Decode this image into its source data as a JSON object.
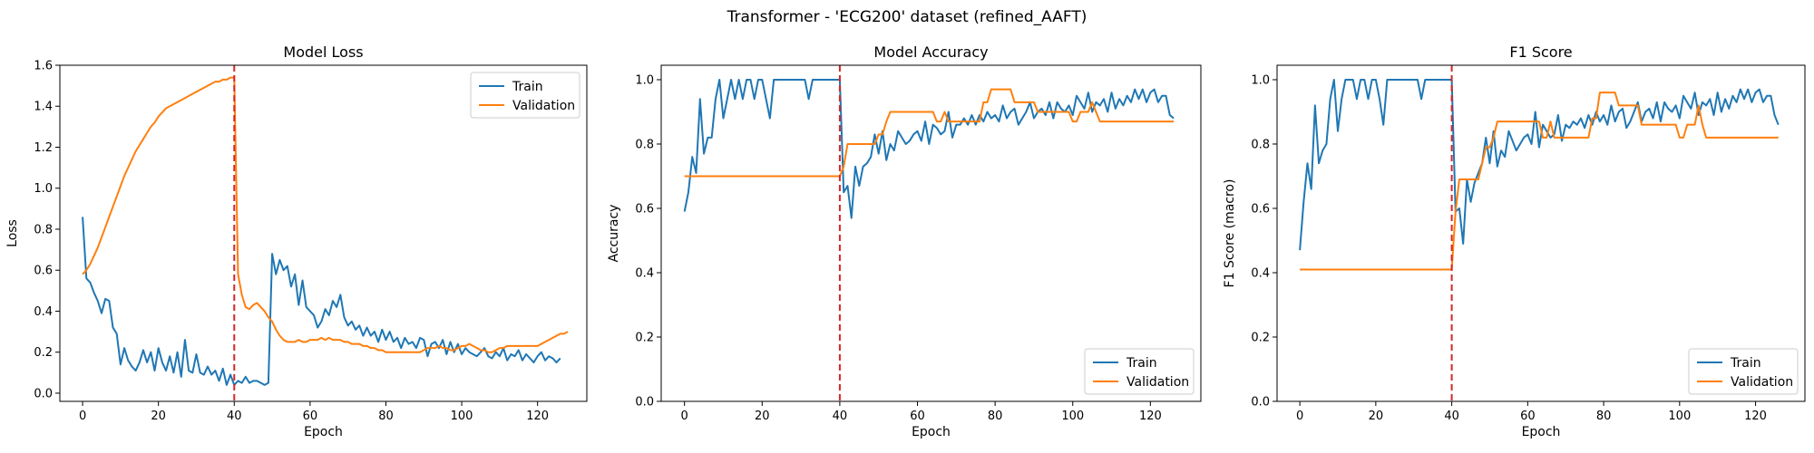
{
  "figure_title": "Transformer - 'ECG200' dataset (refined_AAFT)",
  "colors": {
    "train": "#1f77b4",
    "validation": "#ff7f0e",
    "marker": "#d62728"
  },
  "chart_data": [
    {
      "type": "line",
      "title": "Model Loss",
      "xlabel": "Epoch",
      "ylabel": "Loss",
      "xlim": [
        -6,
        133
      ],
      "ylim": [
        -0.04,
        1.6
      ],
      "xticks": [
        0,
        20,
        40,
        60,
        80,
        100,
        120
      ],
      "yticks": [
        0.0,
        0.2,
        0.4,
        0.6,
        0.8,
        1.0,
        1.2,
        1.4,
        1.6
      ],
      "ytick_labels": [
        "0.0",
        "0.2",
        "0.4",
        "0.6",
        "0.8",
        "1.0",
        "1.2",
        "1.4",
        "1.6"
      ],
      "legend_position": "top-right",
      "vline_x": 40,
      "grid": false,
      "series": [
        {
          "name": "Train",
          "values": [
            0.86,
            0.56,
            0.54,
            0.49,
            0.45,
            0.39,
            0.46,
            0.45,
            0.32,
            0.29,
            0.14,
            0.22,
            0.16,
            0.13,
            0.11,
            0.15,
            0.21,
            0.15,
            0.2,
            0.11,
            0.22,
            0.15,
            0.11,
            0.18,
            0.1,
            0.2,
            0.08,
            0.26,
            0.11,
            0.1,
            0.19,
            0.1,
            0.09,
            0.13,
            0.09,
            0.11,
            0.06,
            0.12,
            0.04,
            0.09,
            0.04,
            0.06,
            0.05,
            0.08,
            0.05,
            0.06,
            0.06,
            0.05,
            0.04,
            0.05,
            0.68,
            0.58,
            0.65,
            0.6,
            0.62,
            0.52,
            0.58,
            0.43,
            0.55,
            0.42,
            0.4,
            0.38,
            0.32,
            0.35,
            0.41,
            0.38,
            0.45,
            0.42,
            0.48,
            0.37,
            0.33,
            0.35,
            0.31,
            0.33,
            0.28,
            0.32,
            0.28,
            0.3,
            0.25,
            0.31,
            0.26,
            0.3,
            0.25,
            0.27,
            0.22,
            0.27,
            0.24,
            0.25,
            0.22,
            0.27,
            0.26,
            0.18,
            0.24,
            0.25,
            0.22,
            0.26,
            0.19,
            0.25,
            0.2,
            0.24,
            0.19,
            0.22,
            0.2,
            0.19,
            0.18,
            0.2,
            0.22,
            0.18,
            0.17,
            0.2,
            0.18,
            0.22,
            0.16,
            0.19,
            0.18,
            0.21,
            0.16,
            0.19,
            0.17,
            0.15,
            0.18,
            0.2,
            0.16,
            0.18,
            0.17,
            0.15,
            0.17
          ]
        },
        {
          "name": "Validation",
          "values": [
            0.58,
            0.6,
            0.63,
            0.67,
            0.71,
            0.76,
            0.81,
            0.86,
            0.91,
            0.96,
            1.01,
            1.06,
            1.1,
            1.14,
            1.18,
            1.21,
            1.24,
            1.27,
            1.3,
            1.32,
            1.35,
            1.37,
            1.39,
            1.4,
            1.41,
            1.42,
            1.43,
            1.44,
            1.45,
            1.46,
            1.47,
            1.48,
            1.49,
            1.5,
            1.51,
            1.52,
            1.52,
            1.53,
            1.53,
            1.54,
            1.54,
            0.58,
            0.48,
            0.42,
            0.41,
            0.43,
            0.44,
            0.42,
            0.4,
            0.37,
            0.35,
            0.31,
            0.28,
            0.26,
            0.25,
            0.25,
            0.25,
            0.26,
            0.25,
            0.25,
            0.26,
            0.26,
            0.26,
            0.27,
            0.26,
            0.27,
            0.26,
            0.26,
            0.26,
            0.25,
            0.25,
            0.24,
            0.24,
            0.24,
            0.23,
            0.23,
            0.22,
            0.22,
            0.21,
            0.21,
            0.2,
            0.2,
            0.2,
            0.2,
            0.2,
            0.2,
            0.2,
            0.2,
            0.2,
            0.2,
            0.21,
            0.22,
            0.22,
            0.22,
            0.23,
            0.22,
            0.22,
            0.21,
            0.21,
            0.22,
            0.23,
            0.23,
            0.24,
            0.23,
            0.22,
            0.21,
            0.21,
            0.2,
            0.2,
            0.21,
            0.22,
            0.22,
            0.23,
            0.23,
            0.23,
            0.23,
            0.23,
            0.23,
            0.23,
            0.23,
            0.23,
            0.24,
            0.25,
            0.26,
            0.27,
            0.28,
            0.29,
            0.29,
            0.3
          ]
        }
      ]
    },
    {
      "type": "line",
      "title": "Model Accuracy",
      "xlabel": "Epoch",
      "ylabel": "Accuracy",
      "xlim": [
        -6,
        133
      ],
      "ylim": [
        0.0,
        1.045
      ],
      "xticks": [
        0,
        20,
        40,
        60,
        80,
        100,
        120
      ],
      "yticks": [
        0.0,
        0.2,
        0.4,
        0.6,
        0.8,
        1.0
      ],
      "ytick_labels": [
        "0.0",
        "0.2",
        "0.4",
        "0.6",
        "0.8",
        "1.0"
      ],
      "legend_position": "bottom-right",
      "vline_x": 40,
      "grid": false,
      "series": [
        {
          "name": "Train",
          "values": [
            0.59,
            0.65,
            0.76,
            0.71,
            0.94,
            0.77,
            0.82,
            0.82,
            0.94,
            1.0,
            0.88,
            0.94,
            1.0,
            0.94,
            1.0,
            0.94,
            1.0,
            1.0,
            0.94,
            1.0,
            1.0,
            0.94,
            0.88,
            1.0,
            1.0,
            1.0,
            1.0,
            1.0,
            1.0,
            1.0,
            1.0,
            1.0,
            0.94,
            1.0,
            1.0,
            1.0,
            1.0,
            1.0,
            1.0,
            1.0,
            1.0,
            0.65,
            0.67,
            0.57,
            0.73,
            0.67,
            0.73,
            0.74,
            0.76,
            0.83,
            0.77,
            0.84,
            0.75,
            0.8,
            0.78,
            0.84,
            0.82,
            0.8,
            0.81,
            0.83,
            0.84,
            0.81,
            0.87,
            0.8,
            0.86,
            0.85,
            0.83,
            0.84,
            0.9,
            0.82,
            0.86,
            0.86,
            0.88,
            0.86,
            0.89,
            0.86,
            0.89,
            0.87,
            0.9,
            0.88,
            0.89,
            0.87,
            0.92,
            0.88,
            0.9,
            0.91,
            0.86,
            0.88,
            0.9,
            0.93,
            0.88,
            0.9,
            0.91,
            0.89,
            0.93,
            0.88,
            0.93,
            0.91,
            0.9,
            0.92,
            0.89,
            0.95,
            0.93,
            0.91,
            0.96,
            0.9,
            0.93,
            0.92,
            0.94,
            0.9,
            0.96,
            0.91,
            0.94,
            0.92,
            0.95,
            0.93,
            0.97,
            0.94,
            0.97,
            0.93,
            0.96,
            0.97,
            0.93,
            0.95,
            0.95,
            0.89,
            0.88
          ]
        },
        {
          "name": "Validation",
          "values": [
            0.7,
            0.7,
            0.7,
            0.7,
            0.7,
            0.7,
            0.7,
            0.7,
            0.7,
            0.7,
            0.7,
            0.7,
            0.7,
            0.7,
            0.7,
            0.7,
            0.7,
            0.7,
            0.7,
            0.7,
            0.7,
            0.7,
            0.7,
            0.7,
            0.7,
            0.7,
            0.7,
            0.7,
            0.7,
            0.7,
            0.7,
            0.7,
            0.7,
            0.7,
            0.7,
            0.7,
            0.7,
            0.7,
            0.7,
            0.7,
            0.7,
            0.73,
            0.8,
            0.8,
            0.8,
            0.8,
            0.8,
            0.8,
            0.8,
            0.8,
            0.83,
            0.83,
            0.87,
            0.9,
            0.9,
            0.9,
            0.9,
            0.9,
            0.9,
            0.9,
            0.9,
            0.9,
            0.9,
            0.9,
            0.9,
            0.87,
            0.87,
            0.9,
            0.87,
            0.87,
            0.87,
            0.87,
            0.87,
            0.87,
            0.87,
            0.87,
            0.87,
            0.93,
            0.93,
            0.97,
            0.97,
            0.97,
            0.97,
            0.97,
            0.97,
            0.93,
            0.93,
            0.93,
            0.93,
            0.93,
            0.93,
            0.9,
            0.9,
            0.9,
            0.9,
            0.9,
            0.9,
            0.9,
            0.9,
            0.9,
            0.87,
            0.87,
            0.9,
            0.9,
            0.9,
            0.93,
            0.9,
            0.87,
            0.87,
            0.87,
            0.87,
            0.87,
            0.87,
            0.87,
            0.87,
            0.87,
            0.87,
            0.87,
            0.87,
            0.87,
            0.87,
            0.87,
            0.87,
            0.87,
            0.87,
            0.87,
            0.87
          ]
        }
      ]
    },
    {
      "type": "line",
      "title": "F1 Score",
      "xlabel": "Epoch",
      "ylabel": "F1 Score (macro)",
      "xlim": [
        -6,
        133
      ],
      "ylim": [
        0.0,
        1.045
      ],
      "xticks": [
        0,
        20,
        40,
        60,
        80,
        100,
        120
      ],
      "yticks": [
        0.0,
        0.2,
        0.4,
        0.6,
        0.8,
        1.0
      ],
      "ytick_labels": [
        "0.0",
        "0.2",
        "0.4",
        "0.6",
        "0.8",
        "1.0"
      ],
      "legend_position": "bottom-right",
      "vline_x": 40,
      "grid": false,
      "series": [
        {
          "name": "Train",
          "values": [
            0.47,
            0.62,
            0.74,
            0.66,
            0.92,
            0.74,
            0.78,
            0.8,
            0.94,
            1.0,
            0.84,
            0.94,
            1.0,
            1.0,
            1.0,
            0.94,
            1.0,
            1.0,
            0.94,
            1.0,
            1.0,
            0.94,
            0.86,
            1.0,
            1.0,
            1.0,
            1.0,
            1.0,
            1.0,
            1.0,
            1.0,
            1.0,
            0.94,
            1.0,
            1.0,
            1.0,
            1.0,
            1.0,
            1.0,
            1.0,
            1.0,
            0.59,
            0.6,
            0.49,
            0.69,
            0.62,
            0.68,
            0.71,
            0.74,
            0.82,
            0.74,
            0.84,
            0.73,
            0.78,
            0.76,
            0.84,
            0.81,
            0.78,
            0.8,
            0.82,
            0.83,
            0.8,
            0.9,
            0.79,
            0.86,
            0.84,
            0.82,
            0.83,
            0.89,
            0.81,
            0.86,
            0.85,
            0.87,
            0.86,
            0.88,
            0.85,
            0.89,
            0.86,
            0.9,
            0.87,
            0.89,
            0.86,
            0.92,
            0.87,
            0.9,
            0.91,
            0.85,
            0.87,
            0.9,
            0.93,
            0.87,
            0.9,
            0.91,
            0.88,
            0.93,
            0.87,
            0.93,
            0.91,
            0.9,
            0.92,
            0.88,
            0.95,
            0.93,
            0.91,
            0.96,
            0.89,
            0.93,
            0.92,
            0.94,
            0.89,
            0.96,
            0.9,
            0.94,
            0.91,
            0.95,
            0.93,
            0.97,
            0.94,
            0.97,
            0.93,
            0.96,
            0.97,
            0.93,
            0.95,
            0.95,
            0.89,
            0.86
          ]
        },
        {
          "name": "Validation",
          "values": [
            0.41,
            0.41,
            0.41,
            0.41,
            0.41,
            0.41,
            0.41,
            0.41,
            0.41,
            0.41,
            0.41,
            0.41,
            0.41,
            0.41,
            0.41,
            0.41,
            0.41,
            0.41,
            0.41,
            0.41,
            0.41,
            0.41,
            0.41,
            0.41,
            0.41,
            0.41,
            0.41,
            0.41,
            0.41,
            0.41,
            0.41,
            0.41,
            0.41,
            0.41,
            0.41,
            0.41,
            0.41,
            0.41,
            0.41,
            0.41,
            0.41,
            0.59,
            0.69,
            0.69,
            0.69,
            0.69,
            0.69,
            0.69,
            0.74,
            0.79,
            0.79,
            0.82,
            0.87,
            0.87,
            0.87,
            0.87,
            0.87,
            0.87,
            0.87,
            0.87,
            0.87,
            0.87,
            0.87,
            0.87,
            0.82,
            0.82,
            0.87,
            0.82,
            0.82,
            0.82,
            0.82,
            0.82,
            0.82,
            0.82,
            0.82,
            0.82,
            0.82,
            0.88,
            0.88,
            0.96,
            0.96,
            0.96,
            0.96,
            0.96,
            0.92,
            0.92,
            0.92,
            0.92,
            0.92,
            0.92,
            0.86,
            0.86,
            0.86,
            0.86,
            0.86,
            0.86,
            0.86,
            0.86,
            0.86,
            0.86,
            0.82,
            0.82,
            0.86,
            0.86,
            0.86,
            0.92,
            0.86,
            0.82,
            0.82,
            0.82,
            0.82,
            0.82,
            0.82,
            0.82,
            0.82,
            0.82,
            0.82,
            0.82,
            0.82,
            0.82,
            0.82,
            0.82,
            0.82,
            0.82,
            0.82,
            0.82,
            0.82
          ]
        }
      ]
    }
  ]
}
